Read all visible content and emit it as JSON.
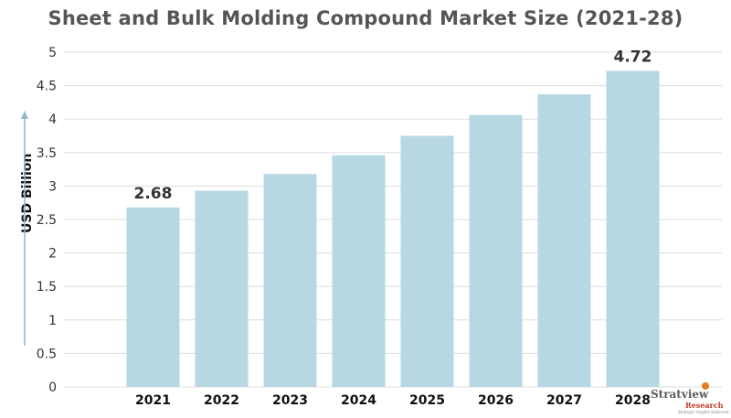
{
  "chart_data": {
    "type": "bar",
    "title": "Sheet and Bulk Molding Compound Market Size (2021-28)",
    "xlabel": "",
    "ylabel": "USD Billion",
    "categories": [
      "2021",
      "2022",
      "2023",
      "2024",
      "2025",
      "2026",
      "2027",
      "2028"
    ],
    "values": [
      2.68,
      2.93,
      3.18,
      3.46,
      3.75,
      4.06,
      4.37,
      4.72
    ],
    "data_labels": [
      "2.68",
      "",
      "",
      "",
      "",
      "",
      "",
      "4.72"
    ],
    "y_ticks": [
      "0",
      "0.5",
      "1",
      "1.5",
      "2",
      "2.5",
      "3",
      "3.5",
      "4",
      "4.5",
      "5"
    ],
    "ylim": [
      0,
      5
    ],
    "grid": true,
    "bar_color": "#b7d7e3",
    "grid_color": "#dddddd",
    "arrow_color": "#8fb9cc"
  },
  "logo": {
    "name": "Stratview",
    "sub": "Research",
    "tagline": "Strategic Insights Delivered"
  }
}
